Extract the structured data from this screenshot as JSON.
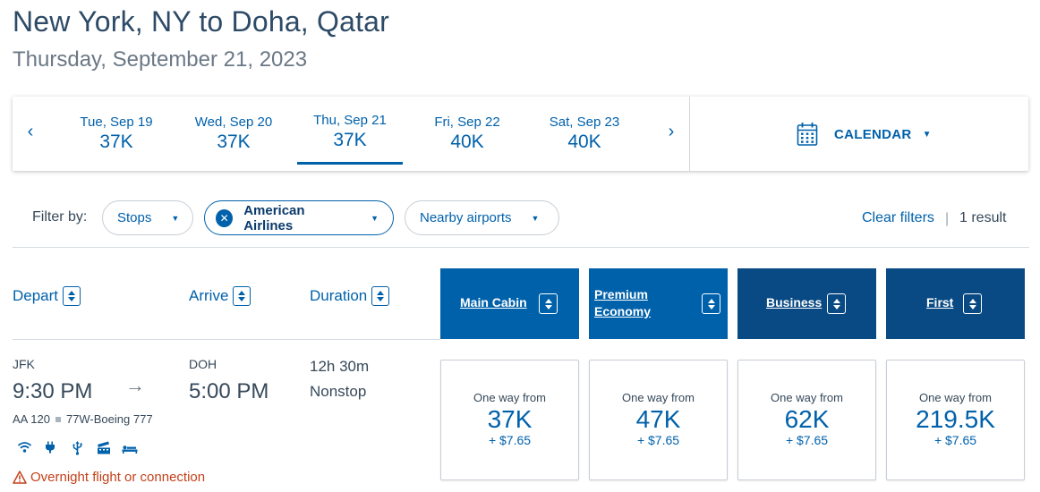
{
  "header": {
    "title": "New York, NY to Doha, Qatar",
    "date": "Thursday, September 21, 2023"
  },
  "date_strip": {
    "prev_arrow": "‹",
    "next_arrow": "›",
    "days": [
      {
        "date": "Tue, Sep 19",
        "price": "37K"
      },
      {
        "date": "Wed, Sep 20",
        "price": "37K"
      },
      {
        "date": "Thu, Sep 21",
        "price": "37K"
      },
      {
        "date": "Fri, Sep 22",
        "price": "40K"
      },
      {
        "date": "Sat, Sep 23",
        "price": "40K"
      }
    ],
    "selected_day": "Thu, Sep 21",
    "calendar_label": "CALENDAR",
    "caret": "▼"
  },
  "filters": {
    "label": "Filter by:",
    "stops": "Stops",
    "airline": "American Airlines",
    "nearby": "Nearby airports",
    "clear": "Clear filters",
    "divider": "|",
    "result_count": "1 result",
    "remove_icon": "✕"
  },
  "columns": {
    "depart": "Depart",
    "arrive": "Arrive",
    "duration": "Duration"
  },
  "cabins": [
    {
      "name": "Main Cabin",
      "color": "#0061ab"
    },
    {
      "name": "Premium Economy",
      "line1": "Premium",
      "line2": "Economy",
      "color": "#0061ab"
    },
    {
      "name": "Business",
      "color": "#0a4a84"
    },
    {
      "name": "First",
      "color": "#0a4a84"
    }
  ],
  "flight": {
    "origin": "JFK",
    "depart_time": "9:30 PM",
    "destination": "DOH",
    "arrive_time": "5:00 PM",
    "flight_number": "AA 120",
    "aircraft": "77W-Boeing 777",
    "duration": "12h 30m",
    "stops": "Nonstop",
    "arrow": "→",
    "amenities": [
      "wifi-icon",
      "power-outlet-icon",
      "usb-icon",
      "entertainment-icon",
      "lie-flat-seat-icon"
    ],
    "warning": "Overnight flight or connection",
    "fares": [
      {
        "label": "One way from",
        "points": "37K",
        "tax": "+ $7.65"
      },
      {
        "label": "One way from",
        "points": "47K",
        "tax": "+ $7.65"
      },
      {
        "label": "One way from",
        "points": "62K",
        "tax": "+ $7.65"
      },
      {
        "label": "One way from",
        "points": "219.5K",
        "tax": "+ $7.65"
      }
    ]
  }
}
